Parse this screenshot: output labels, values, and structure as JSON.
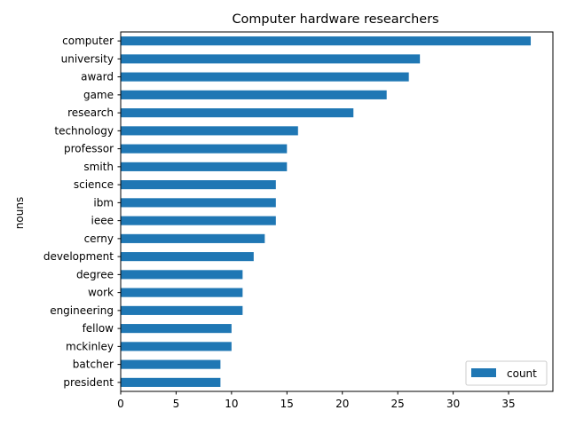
{
  "chart_data": {
    "type": "bar",
    "orientation": "horizontal",
    "title": "Computer hardware researchers",
    "xlabel": "",
    "ylabel": "nouns",
    "categories": [
      "computer",
      "university",
      "award",
      "game",
      "research",
      "technology",
      "professor",
      "smith",
      "science",
      "ibm",
      "ieee",
      "cerny",
      "development",
      "degree",
      "work",
      "engineering",
      "fellow",
      "mckinley",
      "batcher",
      "president"
    ],
    "series": [
      {
        "name": "count",
        "values": [
          37,
          27,
          26,
          24,
          21,
          16,
          15,
          15,
          14,
          14,
          14,
          13,
          12,
          11,
          11,
          11,
          10,
          10,
          9,
          9
        ],
        "color": "#1f77b4"
      }
    ],
    "xlim": [
      0,
      39
    ],
    "xticks": [
      0,
      5,
      10,
      15,
      20,
      25,
      30,
      35
    ],
    "grid": false,
    "legend_position": "bottom-right"
  }
}
